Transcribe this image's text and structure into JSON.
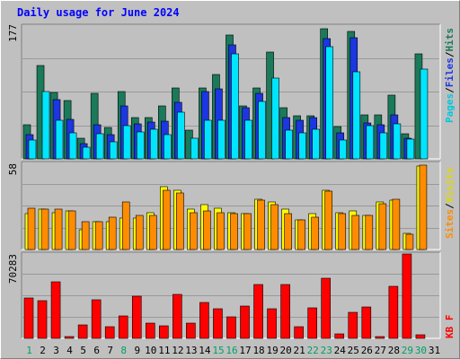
{
  "title": "Daily usage for June 2024",
  "chart_data": [
    {
      "type": "bar",
      "panel": "top",
      "ymax_label": "177",
      "ylim": [
        0,
        177
      ],
      "legend": [
        "Pages",
        "/",
        "Files",
        "/",
        "Hits"
      ],
      "categories": [
        "1",
        "2",
        "3",
        "4",
        "5",
        "6",
        "7",
        "8",
        "9",
        "10",
        "11",
        "12",
        "13",
        "14",
        "15",
        "16",
        "17",
        "18",
        "19",
        "20",
        "21",
        "22",
        "23",
        "24",
        "25",
        "26",
        "27",
        "28",
        "29",
        "30",
        "31"
      ],
      "series": [
        {
          "name": "Hits",
          "color": "#1a7a5a",
          "values": [
            46,
            124,
            88,
            78,
            28,
            87,
            42,
            90,
            55,
            55,
            71,
            95,
            38,
            95,
            112,
            165,
            70,
            94,
            142,
            68,
            58,
            58,
            173,
            43,
            170,
            59,
            59,
            85,
            33,
            140,
            0
          ]
        },
        {
          "name": "Files",
          "color": "#1c36e0",
          "values": [
            32,
            0,
            79,
            53,
            20,
            46,
            32,
            70,
            47,
            49,
            50,
            75,
            0,
            90,
            93,
            152,
            68,
            87,
            0,
            55,
            52,
            55,
            160,
            35,
            162,
            48,
            45,
            59,
            28,
            0,
            0
          ]
        },
        {
          "name": "Pages",
          "color": "#00e5ff",
          "values": [
            25,
            90,
            52,
            35,
            15,
            33,
            23,
            44,
            36,
            40,
            32,
            62,
            28,
            51,
            52,
            140,
            52,
            76,
            108,
            38,
            35,
            40,
            150,
            25,
            116,
            44,
            35,
            47,
            26,
            120,
            0
          ]
        }
      ]
    },
    {
      "type": "bar",
      "panel": "middle",
      "ymax_label": "58",
      "ylim": [
        0,
        58
      ],
      "legend": [
        "Sites",
        "/",
        "Visits"
      ],
      "categories": [
        "1",
        "2",
        "3",
        "4",
        "5",
        "6",
        "7",
        "8",
        "9",
        "10",
        "11",
        "12",
        "13",
        "14",
        "15",
        "16",
        "17",
        "18",
        "19",
        "20",
        "21",
        "22",
        "23",
        "24",
        "25",
        "26",
        "27",
        "28",
        "29",
        "30",
        "31"
      ],
      "series": [
        {
          "name": "Visits",
          "color": "#ffff00",
          "values": [
            24,
            27,
            25,
            26,
            13,
            19,
            19,
            21,
            21,
            25,
            42,
            40,
            27,
            30,
            28,
            25,
            24,
            34,
            32,
            27,
            20,
            24,
            40,
            25,
            26,
            23,
            32,
            33,
            11,
            56,
            0
          ]
        },
        {
          "name": "Sites",
          "color": "#ff8c00",
          "values": [
            28,
            27,
            27,
            26,
            19,
            19,
            22,
            32,
            23,
            23,
            40,
            38,
            25,
            26,
            25,
            24,
            24,
            33,
            30,
            24,
            20,
            22,
            39,
            24,
            23,
            23,
            31,
            34,
            10,
            57,
            0
          ]
        }
      ]
    },
    {
      "type": "bar",
      "panel": "bottom",
      "ymax_label": "70283",
      "ylim": [
        0,
        70283
      ],
      "legend": [
        "KB F"
      ],
      "categories": [
        "1",
        "2",
        "3",
        "4",
        "5",
        "6",
        "7",
        "8",
        "9",
        "10",
        "11",
        "12",
        "13",
        "14",
        "15",
        "16",
        "17",
        "18",
        "19",
        "20",
        "21",
        "22",
        "23",
        "24",
        "25",
        "26",
        "27",
        "28",
        "29",
        "30",
        "31"
      ],
      "series": [
        {
          "name": "KB F",
          "color": "#ff0000",
          "values": [
            34000,
            31500,
            47000,
            1500,
            11000,
            32000,
            9500,
            19000,
            35000,
            13000,
            10500,
            37000,
            13000,
            30000,
            25000,
            18000,
            27000,
            45000,
            24500,
            45000,
            10000,
            25500,
            50000,
            4000,
            22000,
            26000,
            1500,
            43000,
            70283,
            3000,
            0
          ]
        }
      ]
    }
  ],
  "weekend_days": [
    1,
    8,
    15,
    16,
    22,
    23,
    29,
    30
  ],
  "colors": {
    "plot_bg": "#c0c0c0",
    "grid": "#999999",
    "weekday_label": "#000000",
    "weekend_label": "#00a060",
    "pages_label": "#00c8dc",
    "files_label": "#1c36e0",
    "hits_label": "#1a7a5a",
    "sites_label": "#ff8c00",
    "visits_label": "#e0d800",
    "kbf_label": "#ff0000"
  }
}
